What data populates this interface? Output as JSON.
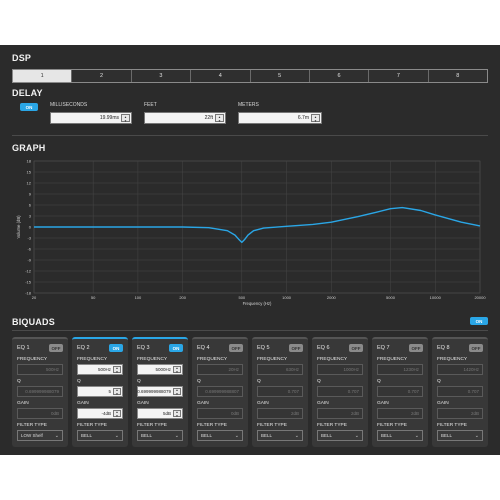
{
  "dsp": {
    "title": "DSP",
    "tabs": [
      "1",
      "2",
      "3",
      "4",
      "5",
      "6",
      "7",
      "8"
    ],
    "active_tab": 0
  },
  "delay": {
    "title": "DELAY",
    "toggle": "ON",
    "milliseconds_label": "MILLISECONDS",
    "milliseconds_value": "19.99ms",
    "feet_label": "FEET",
    "feet_value": "22ft",
    "meters_label": "METERS",
    "meters_value": "6.7m"
  },
  "graph": {
    "title": "GRAPH",
    "ylabel": "Volume (dB)",
    "xlabel": "Frequency (Hz)",
    "y_ticks": [
      "18",
      "15",
      "12",
      "9",
      "6",
      "3",
      "0",
      "-3",
      "-6",
      "-9",
      "-12",
      "-15",
      "-18"
    ],
    "x_ticks": [
      "20",
      "50",
      "100",
      "200",
      "500",
      "1000",
      "2000",
      "5000",
      "10000",
      "20000"
    ]
  },
  "chart_data": {
    "type": "line",
    "xlabel": "Frequency (Hz)",
    "ylabel": "Volume (dB)",
    "xscale": "log",
    "xlim": [
      20,
      20000
    ],
    "ylim": [
      -18,
      18
    ],
    "grid": true,
    "series": [
      {
        "color": "#2aa6e6",
        "x": [
          20,
          50,
          100,
          200,
          300,
          400,
          450,
          480,
          500,
          520,
          550,
          600,
          700,
          1000,
          1500,
          2000,
          3000,
          4000,
          5000,
          6000,
          8000,
          10000,
          15000,
          20000
        ],
        "y": [
          0,
          0,
          0,
          0,
          -0.2,
          -1.0,
          -2.2,
          -3.5,
          -4.2,
          -3.5,
          -2.2,
          -1.0,
          -0.3,
          0.2,
          0.7,
          1.3,
          2.8,
          4.0,
          5.0,
          5.3,
          4.5,
          3.3,
          1.3,
          0.3
        ]
      }
    ]
  },
  "biquads": {
    "title": "BIQUADS",
    "toggle": "ON",
    "labels": {
      "frequency": "FREQUENCY",
      "q": "Q",
      "gain": "GAIN",
      "filter_type": "FILTER TYPE"
    },
    "bands": [
      {
        "name": "EQ 1",
        "state": "OFF",
        "frequency": "500Hz",
        "q": "0.699999988079",
        "gain": "0dB",
        "filter": "LOW Shelf"
      },
      {
        "name": "EQ 2",
        "state": "ON",
        "frequency": "500Hz",
        "q": "5",
        "gain": "-4dB",
        "filter": "BELL"
      },
      {
        "name": "EQ 3",
        "state": "ON",
        "frequency": "5000Hz",
        "q": "0.699999988079",
        "gain": "5dB",
        "filter": "BELL"
      },
      {
        "name": "EQ 4",
        "state": "OFF",
        "frequency": "20Hz",
        "q": "0.699999988807",
        "gain": "0dB",
        "filter": "BELL"
      },
      {
        "name": "EQ 5",
        "state": "OFF",
        "frequency": "630Hz",
        "q": "0.707",
        "gain": "2dB",
        "filter": "BELL"
      },
      {
        "name": "EQ 6",
        "state": "OFF",
        "frequency": "1000Hz",
        "q": "0.707",
        "gain": "2dB",
        "filter": "BELL"
      },
      {
        "name": "EQ 7",
        "state": "OFF",
        "frequency": "1230Hz",
        "q": "0.707",
        "gain": "2dB",
        "filter": "BELL"
      },
      {
        "name": "EQ 8",
        "state": "OFF",
        "frequency": "1420Hz",
        "q": "0.707",
        "gain": "2dB",
        "filter": "BELL"
      }
    ]
  }
}
